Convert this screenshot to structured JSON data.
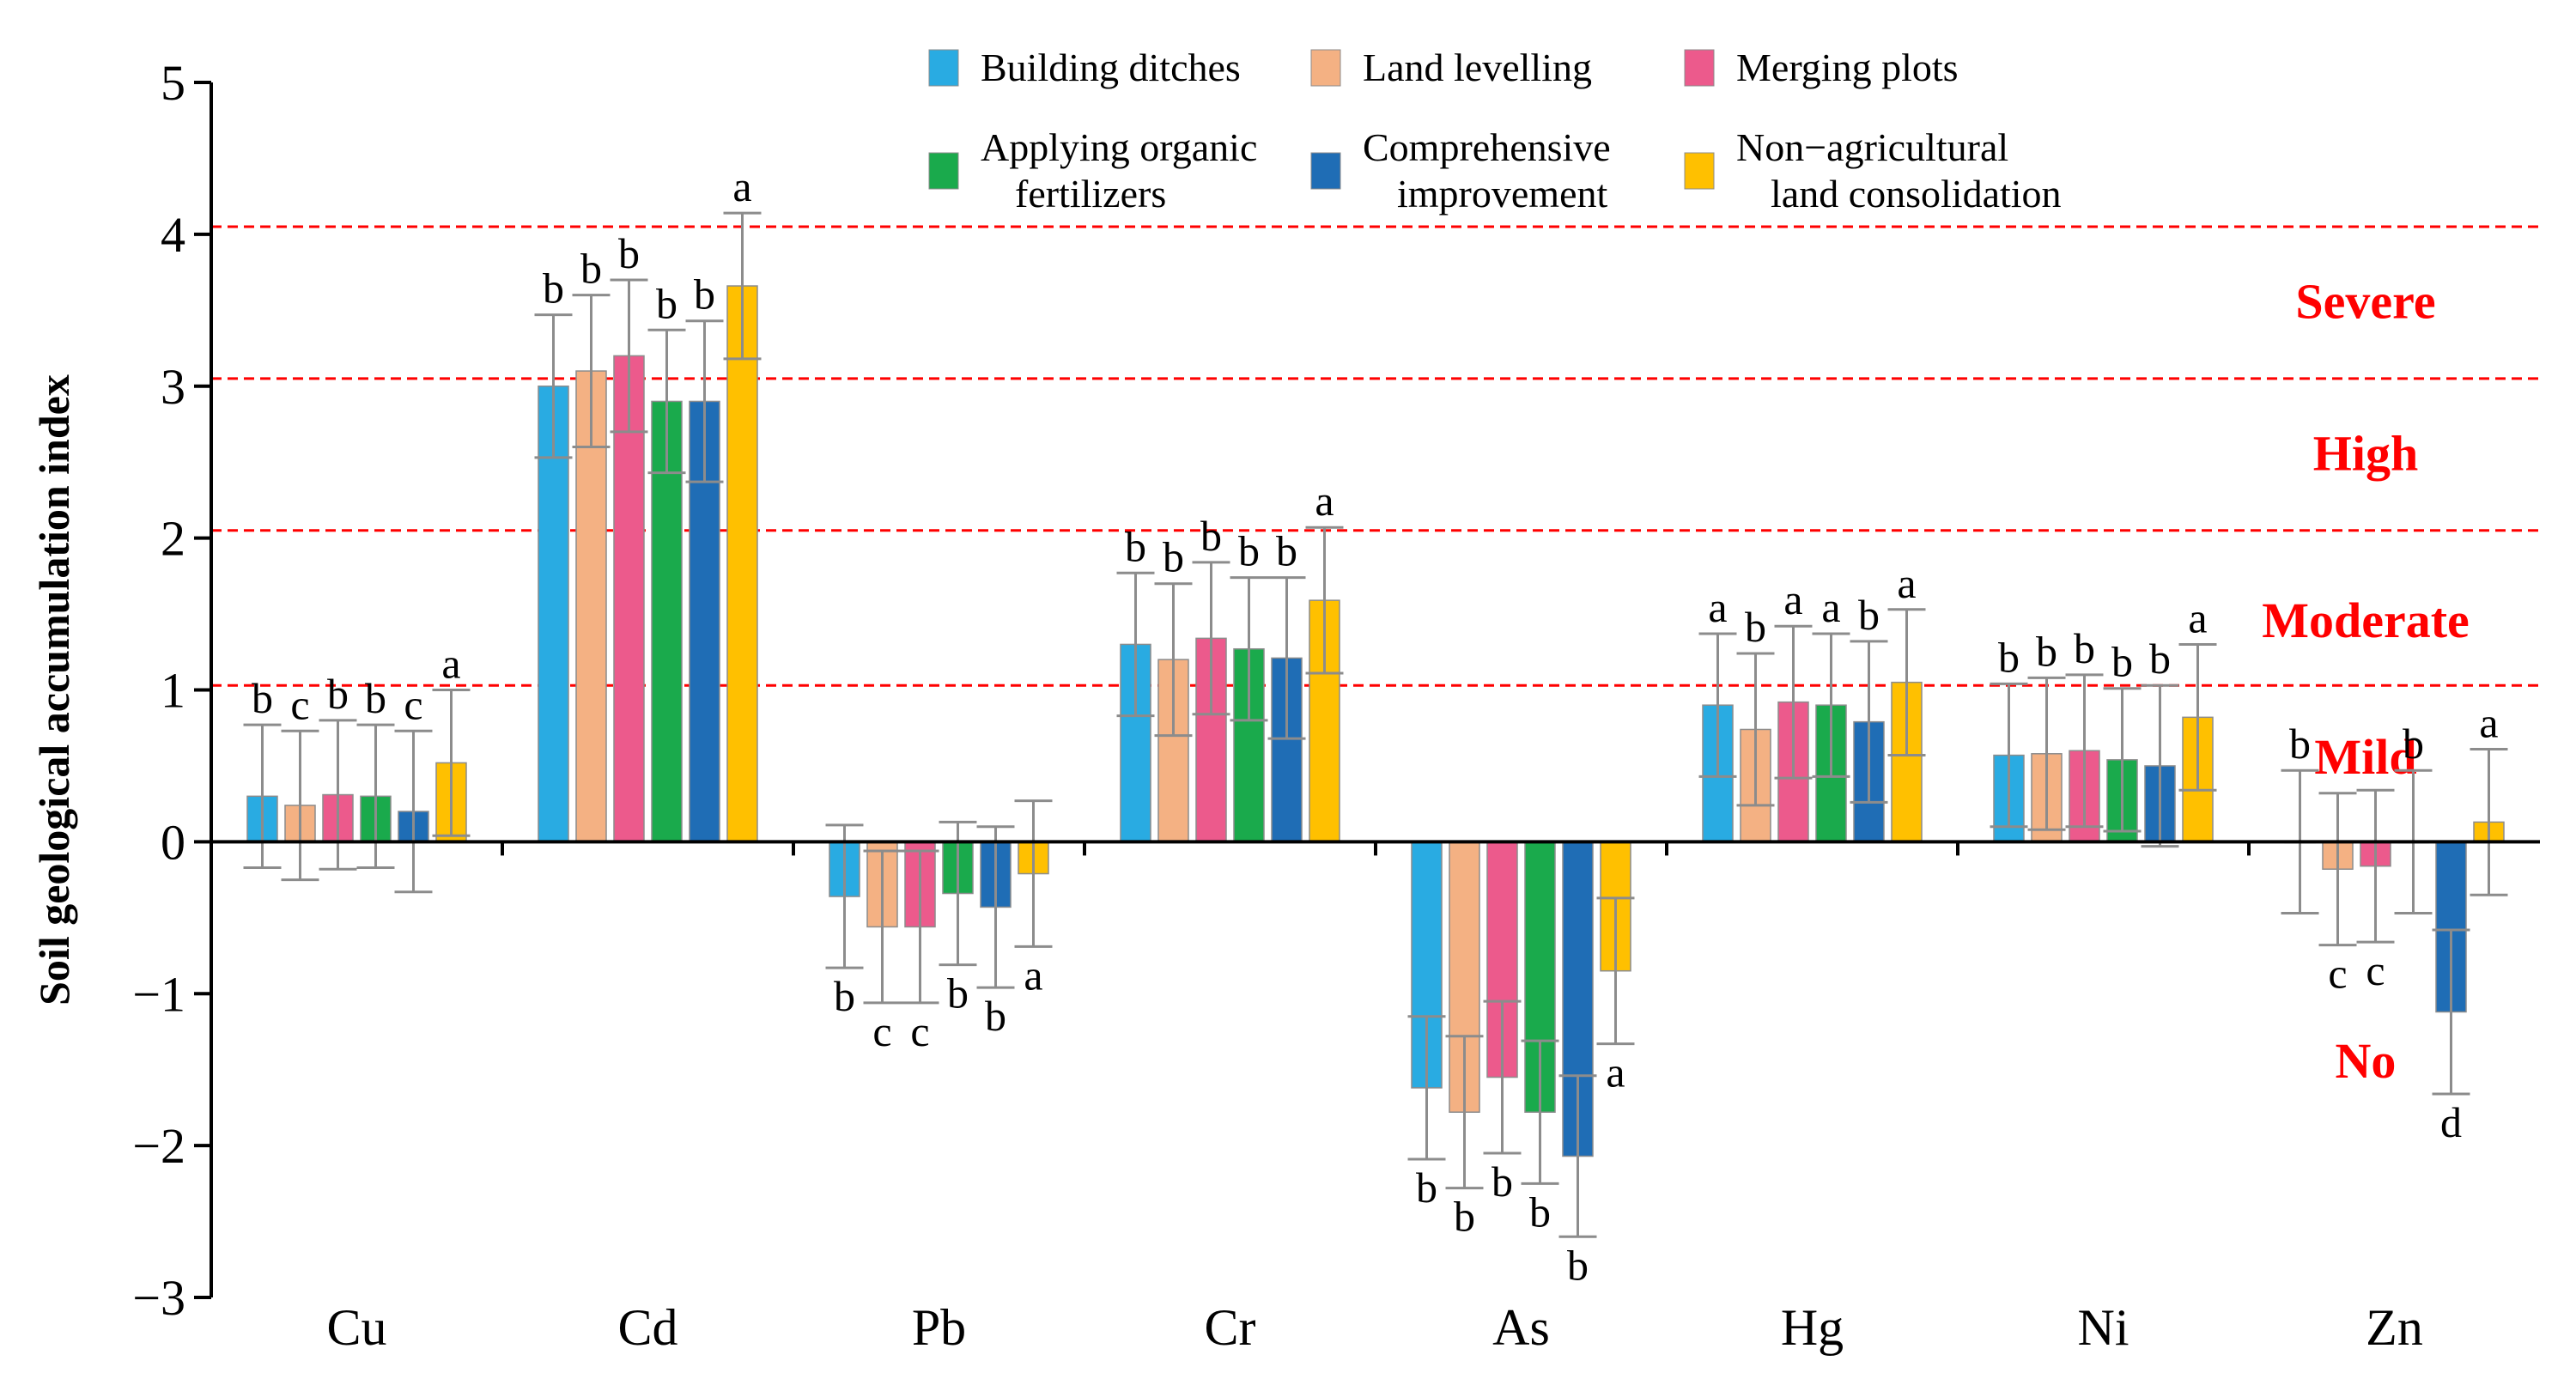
{
  "chart_data": {
    "type": "bar",
    "ylabel": "Soil geological accumulation index",
    "ylim": [
      -3,
      5
    ],
    "yticks": [
      5,
      4,
      3,
      2,
      1,
      0,
      -1,
      -2,
      -3
    ],
    "grid": false,
    "legend_position": "top",
    "categories": [
      "Cu",
      "Cd",
      "Pb",
      "Cr",
      "As",
      "Hg",
      "Ni",
      "Zn"
    ],
    "series": [
      {
        "name": "Building ditches",
        "name_lines": [
          "Building ditches"
        ],
        "color": "#29ABE2",
        "values": [
          0.3,
          3.0,
          -0.36,
          1.3,
          -1.62,
          0.9,
          0.57,
          0.0
        ],
        "errors": [
          0.47,
          0.47,
          0.47,
          0.47,
          0.47,
          0.47,
          0.47,
          0.47
        ],
        "letters": [
          "b",
          "b",
          "b",
          "b",
          "b",
          "a",
          "b",
          "b"
        ]
      },
      {
        "name": "Land levelling",
        "name_lines": [
          "Land levelling"
        ],
        "color": "#F4B183",
        "values": [
          0.24,
          3.1,
          -0.56,
          1.2,
          -1.78,
          0.74,
          0.58,
          -0.18
        ],
        "errors": [
          0.49,
          0.5,
          0.5,
          0.5,
          0.5,
          0.5,
          0.5,
          0.5
        ],
        "letters": [
          "c",
          "b",
          "c",
          "b",
          "b",
          "b",
          "b",
          "c"
        ]
      },
      {
        "name": "Merging plots",
        "name_lines": [
          "Merging plots"
        ],
        "color": "#EC5A8C",
        "values": [
          0.31,
          3.2,
          -0.56,
          1.34,
          -1.55,
          0.92,
          0.6,
          -0.16
        ],
        "errors": [
          0.49,
          0.5,
          0.5,
          0.5,
          0.5,
          0.5,
          0.5,
          0.5
        ],
        "letters": [
          "b",
          "b",
          "c",
          "b",
          "b",
          "a",
          "b",
          "c"
        ]
      },
      {
        "name": "Applying organic fertilizers",
        "name_lines": [
          "Applying organic",
          "fertilizers"
        ],
        "color": "#1AAA4C",
        "values": [
          0.3,
          2.9,
          -0.34,
          1.27,
          -1.78,
          0.9,
          0.54,
          0.0
        ],
        "errors": [
          0.47,
          0.47,
          0.47,
          0.47,
          0.47,
          0.47,
          0.47,
          0.47
        ],
        "letters": [
          "b",
          "b",
          "b",
          "b",
          "b",
          "a",
          "b",
          "b"
        ]
      },
      {
        "name": "Comprehensive improvement",
        "name_lines": [
          "Comprehensive",
          "improvement"
        ],
        "color": "#1F6DB5",
        "values": [
          0.2,
          2.9,
          -0.43,
          1.21,
          -2.07,
          0.79,
          0.5,
          -1.12
        ],
        "errors": [
          0.53,
          0.53,
          0.53,
          0.53,
          0.53,
          0.53,
          0.53,
          0.54
        ],
        "letters": [
          "c",
          "b",
          "b",
          "b",
          "b",
          "b",
          "b",
          "d"
        ]
      },
      {
        "name": "Non−agricultural land consolidation",
        "name_lines": [
          "Non−agricultural",
          "land consolidation"
        ],
        "color": "#FFC000",
        "values": [
          0.52,
          3.66,
          -0.21,
          1.59,
          -0.85,
          1.05,
          0.82,
          0.13
        ],
        "errors": [
          0.48,
          0.48,
          0.48,
          0.48,
          0.48,
          0.48,
          0.48,
          0.48
        ],
        "letters": [
          "a",
          "a",
          "a",
          "a",
          "a",
          "a",
          "a",
          "a"
        ]
      }
    ],
    "reference_lines": [
      {
        "y": 4.05,
        "color": "#FF0000"
      },
      {
        "y": 3.05,
        "color": "#FF0000"
      },
      {
        "y": 2.05,
        "color": "#FF0000"
      },
      {
        "y": 1.03,
        "color": "#FF0000"
      }
    ],
    "zone_labels": [
      {
        "text": "Severe",
        "y": 3.55
      },
      {
        "text": "High",
        "y": 2.55
      },
      {
        "text": "Moderate",
        "y": 1.45
      },
      {
        "text": "Mild",
        "y": 0.55
      },
      {
        "text": "No",
        "y": -1.45
      }
    ],
    "zone_label_color": "#FF0000",
    "error_bar_color": "#8C8C8C"
  }
}
